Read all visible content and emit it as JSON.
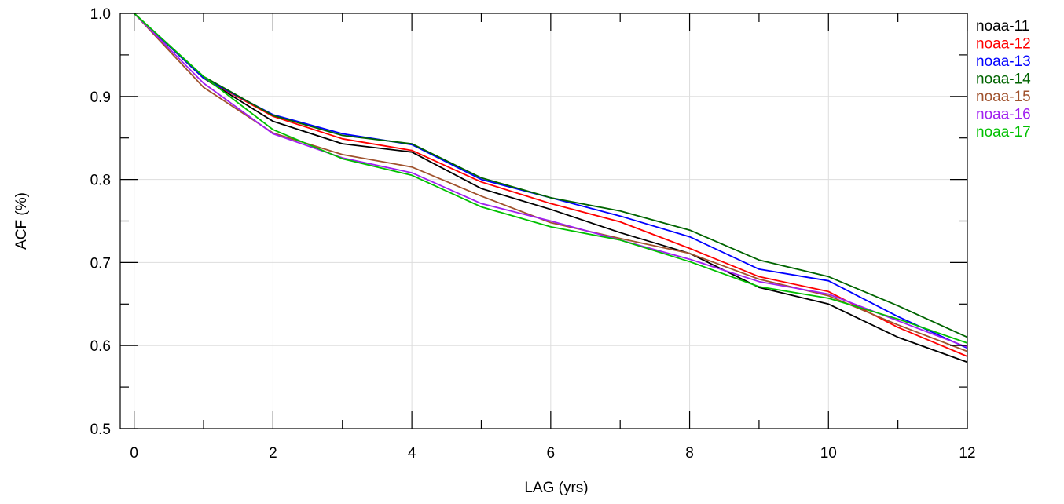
{
  "chart_data": {
    "type": "line",
    "title": "",
    "xlabel": "LAG (yrs)",
    "ylabel": "ACF (%)",
    "xlim": [
      -0.2,
      12
    ],
    "ylim": [
      0.5,
      1.0
    ],
    "x_ticks": [
      0,
      2,
      4,
      6,
      8,
      10,
      12
    ],
    "x_tick_labels": [
      "0",
      "2",
      "4",
      "6",
      "8",
      "10",
      "12"
    ],
    "y_ticks": [
      0.5,
      0.6,
      0.7,
      0.8,
      0.9,
      1.0
    ],
    "y_tick_labels": [
      "0.5",
      "0.6",
      "0.7",
      "0.8",
      "0.9",
      "1.0"
    ],
    "grid": true,
    "legend_position": "outside-right-top",
    "x": [
      0,
      1,
      2,
      3,
      4,
      5,
      6,
      7,
      8,
      9,
      10,
      11,
      12
    ],
    "series": [
      {
        "name": "noaa-11",
        "color": "#000000",
        "values": [
          1.0,
          0.922,
          0.87,
          0.843,
          0.833,
          0.789,
          0.764,
          0.736,
          0.711,
          0.67,
          0.65,
          0.61,
          0.58
        ]
      },
      {
        "name": "noaa-12",
        "color": "#ff0000",
        "values": [
          1.0,
          0.922,
          0.876,
          0.849,
          0.835,
          0.797,
          0.771,
          0.749,
          0.717,
          0.683,
          0.665,
          0.622,
          0.587
        ]
      },
      {
        "name": "noaa-13",
        "color": "#0000ff",
        "values": [
          1.0,
          0.922,
          0.878,
          0.855,
          0.842,
          0.8,
          0.778,
          0.756,
          0.731,
          0.692,
          0.678,
          0.635,
          0.597
        ]
      },
      {
        "name": "noaa-14",
        "color": "#006400",
        "values": [
          1.0,
          0.924,
          0.877,
          0.853,
          0.843,
          0.802,
          0.778,
          0.762,
          0.739,
          0.703,
          0.683,
          0.648,
          0.61
        ]
      },
      {
        "name": "noaa-15",
        "color": "#a0522d",
        "values": [
          1.0,
          0.911,
          0.856,
          0.83,
          0.815,
          0.78,
          0.748,
          0.729,
          0.711,
          0.68,
          0.66,
          0.625,
          0.593
        ]
      },
      {
        "name": "noaa-16",
        "color": "#a020f0",
        "values": [
          1.0,
          0.916,
          0.855,
          0.826,
          0.808,
          0.771,
          0.75,
          0.727,
          0.704,
          0.677,
          0.662,
          0.63,
          0.598
        ]
      },
      {
        "name": "noaa-17",
        "color": "#00c000",
        "values": [
          1.0,
          0.924,
          0.86,
          0.825,
          0.805,
          0.767,
          0.743,
          0.727,
          0.701,
          0.671,
          0.657,
          0.632,
          0.603
        ]
      }
    ]
  }
}
